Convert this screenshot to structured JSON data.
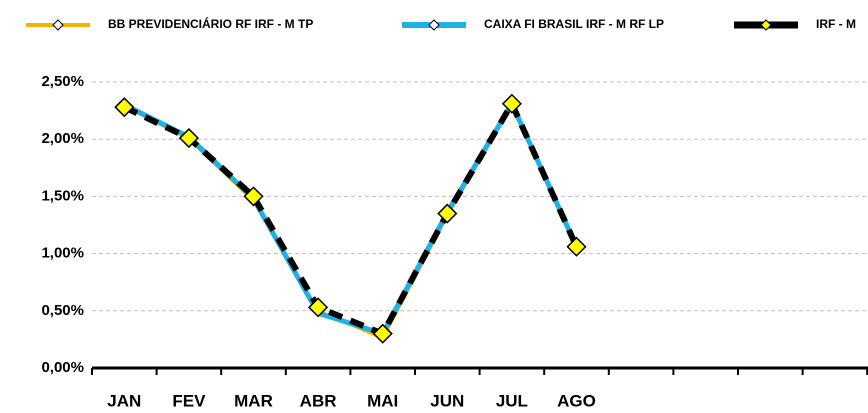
{
  "chart_data": {
    "type": "line",
    "categories": [
      "JAN",
      "FEV",
      "MAR",
      "ABR",
      "MAI",
      "JUN",
      "JUL",
      "AGO",
      null,
      null,
      null,
      null
    ],
    "series": [
      {
        "name": "BB PREVIDENCIÁRIO RF IRF - M TP",
        "color": "#f2b400",
        "values": [
          2.29,
          2.0,
          1.46,
          0.5,
          0.26,
          1.33,
          2.3,
          1.05,
          null,
          null,
          null,
          null
        ]
      },
      {
        "name": "CAIXA FI BRASIL IRF - M RF LP",
        "color": "#1eb1e6",
        "values": [
          2.3,
          2.02,
          1.48,
          0.48,
          0.3,
          1.36,
          2.31,
          1.06,
          null,
          null,
          null,
          null
        ]
      },
      {
        "name": "IRF - M",
        "color": "#000000",
        "values": [
          2.28,
          2.01,
          1.5,
          0.53,
          0.3,
          1.35,
          2.31,
          1.06,
          null,
          null,
          null,
          null
        ]
      }
    ],
    "ylim": [
      0,
      2.5
    ],
    "yticks": [
      {
        "value": 0,
        "label": "0,00%"
      },
      {
        "value": 0.5,
        "label": "0,50%"
      },
      {
        "value": 1,
        "label": "1,00%"
      },
      {
        "value": 1.5,
        "label": "1,50%"
      },
      {
        "value": 2,
        "label": "2,00%"
      },
      {
        "value": 2.5,
        "label": "2,50%"
      }
    ],
    "grid": true,
    "legend": "top"
  }
}
